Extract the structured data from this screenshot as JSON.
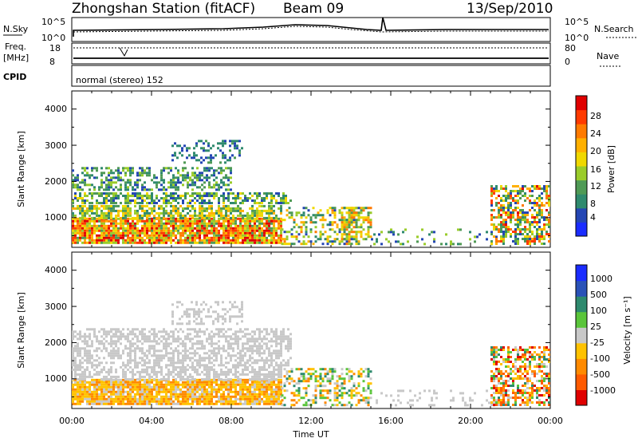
{
  "header": {
    "title": "Zhongshan Station (fitACF)",
    "beam": "Beam 09",
    "date": "13/Sep/2010"
  },
  "top_panels": {
    "nsky_label": "N.Sky",
    "nsearch_label": "N.Search",
    "nsky_ticks": [
      "10^5",
      "10^0"
    ],
    "nsearch_ticks": [
      "10^5",
      "10^0"
    ],
    "freq_label_1": "Freq.",
    "freq_label_2": "[MHz]",
    "freq_ticks": [
      "18",
      "8"
    ],
    "nave_label": "Nave",
    "nave_ticks": [
      "80",
      "0"
    ],
    "cpid_label": "CPID",
    "cpid_text": "normal (stereo) 152"
  },
  "x_axis": {
    "label": "Time UT",
    "ticks": [
      "00:00",
      "04:00",
      "08:00",
      "12:00",
      "16:00",
      "20:00",
      "00:00"
    ]
  },
  "y_axis": {
    "label": "Slant Range [km]",
    "ticks": [
      "1000",
      "2000",
      "3000",
      "4000"
    ]
  },
  "power_scale": {
    "label": "Power [dB]",
    "ticks": [
      "4",
      "8",
      "12",
      "16",
      "20",
      "24",
      "28"
    ],
    "colors": [
      "#1a2cff",
      "#2446b4",
      "#2f8a6e",
      "#4f9a55",
      "#9acc2a",
      "#f0d800",
      "#ffb000",
      "#ff7a00",
      "#ff3a00",
      "#e00000"
    ]
  },
  "velocity_scale": {
    "label": "Velocity [m s⁻¹]",
    "ticks": [
      "1000",
      "500",
      "100",
      "25",
      "-25",
      "-100",
      "-500",
      "-1000"
    ],
    "colors": [
      "#1a2cff",
      "#2a52b8",
      "#2e8a6e",
      "#5ac53a",
      "#c8c8c8",
      "#ffc200",
      "#ff8a00",
      "#ff5a00",
      "#e00000"
    ]
  },
  "chart_data": {
    "type": "heatmap",
    "xlabel": "Time UT",
    "ylabel": "Slant Range [km]",
    "xlim_hours": [
      0,
      24
    ],
    "ylim_km": [
      180,
      4500
    ],
    "panels": [
      {
        "name": "Power",
        "unit": "dB",
        "scale": [
          0,
          30
        ],
        "blobs": [
          {
            "t0": 0.0,
            "t1": 10.5,
            "r0": 300,
            "r1": 1000,
            "v0": 10,
            "v1": 30,
            "density": 0.9
          },
          {
            "t0": 0.0,
            "t1": 10.5,
            "r0": 1000,
            "r1": 1350,
            "v0": 6,
            "v1": 20,
            "density": 0.7
          },
          {
            "t0": 0.0,
            "t1": 11.0,
            "r0": 1400,
            "r1": 1700,
            "v0": 4,
            "v1": 16,
            "density": 0.6
          },
          {
            "t0": 0.0,
            "t1": 8.0,
            "r0": 1750,
            "r1": 2400,
            "v0": 4,
            "v1": 14,
            "density": 0.45
          },
          {
            "t0": 5.0,
            "t1": 8.5,
            "r0": 2500,
            "r1": 3150,
            "v0": 4,
            "v1": 10,
            "density": 0.35
          },
          {
            "t0": 10.5,
            "t1": 14.5,
            "r0": 300,
            "r1": 1300,
            "v0": 4,
            "v1": 22,
            "density": 0.35
          },
          {
            "t0": 13.5,
            "t1": 15.0,
            "r0": 400,
            "r1": 1300,
            "v0": 8,
            "v1": 24,
            "density": 0.6
          },
          {
            "t0": 15.0,
            "t1": 21.5,
            "r0": 300,
            "r1": 700,
            "v0": 4,
            "v1": 14,
            "density": 0.12
          },
          {
            "t0": 21.0,
            "t1": 24.0,
            "r0": 300,
            "r1": 1900,
            "v0": 4,
            "v1": 28,
            "density": 0.55
          }
        ]
      },
      {
        "name": "Velocity",
        "unit": "m/s",
        "scale": [
          -1000,
          1000
        ],
        "blobs": [
          {
            "t0": 0.0,
            "t1": 10.5,
            "r0": 300,
            "r1": 1000,
            "v0": -500,
            "v1": -25,
            "density": 0.9
          },
          {
            "t0": 0.0,
            "t1": 10.5,
            "r0": 1000,
            "r1": 1350,
            "v0": -100,
            "v1": 100,
            "density": 0.6
          },
          {
            "t0": 0.0,
            "t1": 11.0,
            "r0": 1400,
            "r1": 2400,
            "v0": -25,
            "v1": 25,
            "density": 0.55
          },
          {
            "t0": 5.0,
            "t1": 8.5,
            "r0": 2500,
            "r1": 3150,
            "v0": -25,
            "v1": 25,
            "density": 0.35
          },
          {
            "t0": 10.5,
            "t1": 15.0,
            "r0": 300,
            "r1": 1300,
            "v0": -500,
            "v1": 500,
            "density": 0.45
          },
          {
            "t0": 15.0,
            "t1": 21.5,
            "r0": 300,
            "r1": 700,
            "v0": -100,
            "v1": 100,
            "density": 0.12
          },
          {
            "t0": 21.0,
            "t1": 24.0,
            "r0": 300,
            "r1": 1900,
            "v0": -1000,
            "v1": 500,
            "density": 0.55
          }
        ]
      }
    ]
  }
}
